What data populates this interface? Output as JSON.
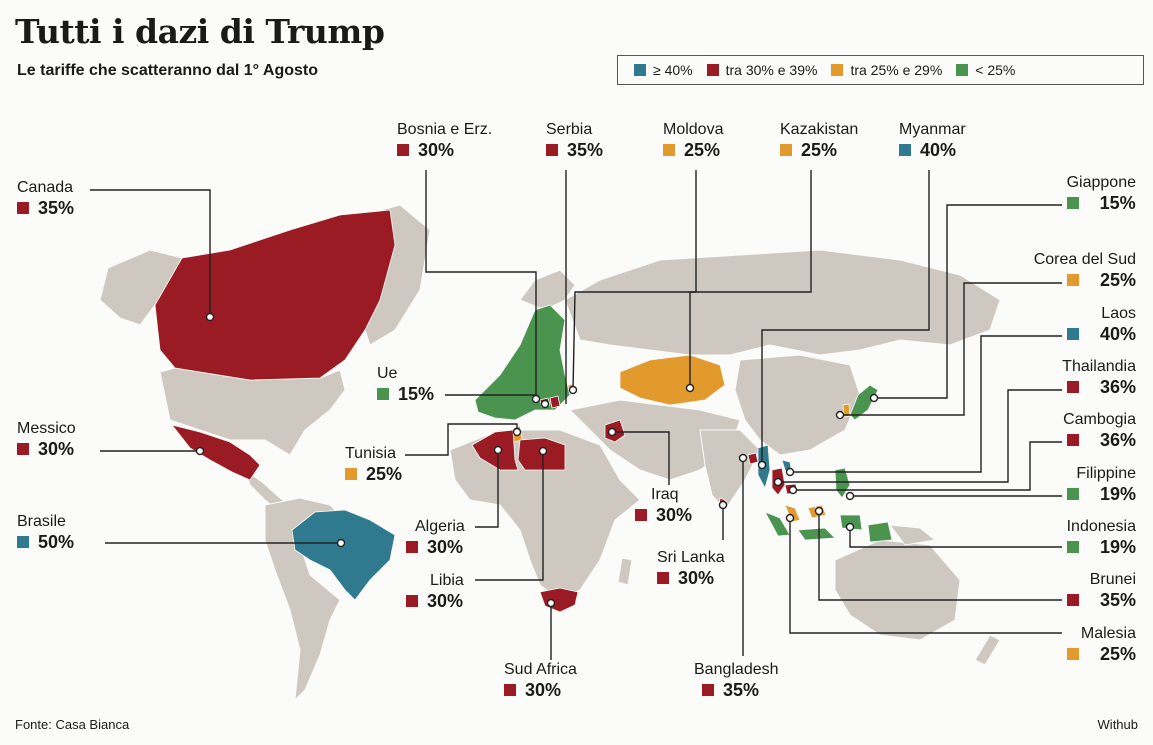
{
  "title": "Tutti i dazi di Trump",
  "subtitle": "Le tariffe che scatteranno dal 1° Agosto",
  "legend": [
    {
      "label": "≥ 40%",
      "color": "#2f7a8e"
    },
    {
      "label": "tra 30% e 39%",
      "color": "#9b1b25"
    },
    {
      "label": "tra 25% e 29%",
      "color": "#e29a2c"
    },
    {
      "label": "< 25%",
      "color": "#4a9450"
    }
  ],
  "countries": {
    "canada": {
      "name": "Canada",
      "value": "35%",
      "color": "#9b1b25"
    },
    "messico": {
      "name": "Messico",
      "value": "30%",
      "color": "#9b1b25"
    },
    "brasile": {
      "name": "Brasile",
      "value": "50%",
      "color": "#2f7a8e"
    },
    "bosnia": {
      "name": "Bosnia e Erz.",
      "value": "30%",
      "color": "#9b1b25"
    },
    "serbia": {
      "name": "Serbia",
      "value": "35%",
      "color": "#9b1b25"
    },
    "moldova": {
      "name": "Moldova",
      "value": "25%",
      "color": "#e29a2c"
    },
    "kazakistan": {
      "name": "Kazakistan",
      "value": "25%",
      "color": "#e29a2c"
    },
    "myanmar": {
      "name": "Myanmar",
      "value": "40%",
      "color": "#2f7a8e"
    },
    "ue": {
      "name": "Ue",
      "value": "15%",
      "color": "#4a9450"
    },
    "tunisia": {
      "name": "Tunisia",
      "value": "25%",
      "color": "#e29a2c"
    },
    "algeria": {
      "name": "Algeria",
      "value": "30%",
      "color": "#9b1b25"
    },
    "libia": {
      "name": "Libia",
      "value": "30%",
      "color": "#9b1b25"
    },
    "iraq": {
      "name": "Iraq",
      "value": "30%",
      "color": "#9b1b25"
    },
    "srilanka": {
      "name": "Sri Lanka",
      "value": "30%",
      "color": "#9b1b25"
    },
    "sudafrica": {
      "name": "Sud Africa",
      "value": "30%",
      "color": "#9b1b25"
    },
    "bangladesh": {
      "name": "Bangladesh",
      "value": "35%",
      "color": "#9b1b25"
    },
    "giappone": {
      "name": "Giappone",
      "value": "15%",
      "color": "#4a9450"
    },
    "corea": {
      "name": "Corea del Sud",
      "value": "25%",
      "color": "#e29a2c"
    },
    "laos": {
      "name": "Laos",
      "value": "40%",
      "color": "#2f7a8e"
    },
    "thailandia": {
      "name": "Thailandia",
      "value": "36%",
      "color": "#9b1b25"
    },
    "cambogia": {
      "name": "Cambogia",
      "value": "36%",
      "color": "#9b1b25"
    },
    "filippine": {
      "name": "Filippine",
      "value": "19%",
      "color": "#4a9450"
    },
    "indonesia": {
      "name": "Indonesia",
      "value": "19%",
      "color": "#4a9450"
    },
    "brunei": {
      "name": "Brunei",
      "value": "35%",
      "color": "#9b1b25"
    },
    "malesia": {
      "name": "Malesia",
      "value": "25%",
      "color": "#e29a2c"
    }
  },
  "footer": {
    "source": "Fonte: Casa Bianca",
    "brand": "Withub"
  }
}
